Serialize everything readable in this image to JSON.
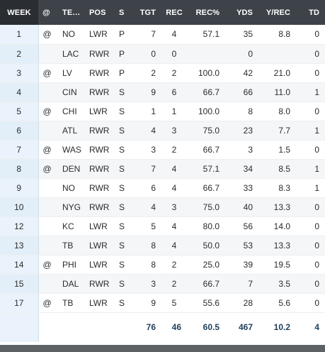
{
  "table": {
    "headers": {
      "week": "WEEK",
      "at": "@",
      "team": "TE…",
      "pos": "POS",
      "s": "S",
      "tgt": "TGT",
      "rec": "REC",
      "rec_pct": "REC%",
      "yds": "YDS",
      "y_rec": "Y/REC",
      "td": "TD"
    },
    "rows": [
      {
        "week": "1",
        "at": "@",
        "team": "NO",
        "pos": "LWR",
        "s": "P",
        "tgt": "7",
        "rec": "4",
        "rec_pct": "57.1",
        "yds": "35",
        "y_rec": "8.8",
        "td": "0"
      },
      {
        "week": "2",
        "at": "",
        "team": "LAC",
        "pos": "RWR",
        "s": "P",
        "tgt": "0",
        "rec": "0",
        "rec_pct": "",
        "yds": "0",
        "y_rec": "",
        "td": "0"
      },
      {
        "week": "3",
        "at": "@",
        "team": "LV",
        "pos": "RWR",
        "s": "P",
        "tgt": "2",
        "rec": "2",
        "rec_pct": "100.0",
        "yds": "42",
        "y_rec": "21.0",
        "td": "0"
      },
      {
        "week": "4",
        "at": "",
        "team": "CIN",
        "pos": "RWR",
        "s": "S",
        "tgt": "9",
        "rec": "6",
        "rec_pct": "66.7",
        "yds": "66",
        "y_rec": "11.0",
        "td": "1"
      },
      {
        "week": "5",
        "at": "@",
        "team": "CHI",
        "pos": "LWR",
        "s": "S",
        "tgt": "1",
        "rec": "1",
        "rec_pct": "100.0",
        "yds": "8",
        "y_rec": "8.0",
        "td": "0"
      },
      {
        "week": "6",
        "at": "",
        "team": "ATL",
        "pos": "RWR",
        "s": "S",
        "tgt": "4",
        "rec": "3",
        "rec_pct": "75.0",
        "yds": "23",
        "y_rec": "7.7",
        "td": "1"
      },
      {
        "week": "7",
        "at": "@",
        "team": "WAS",
        "pos": "RWR",
        "s": "S",
        "tgt": "3",
        "rec": "2",
        "rec_pct": "66.7",
        "yds": "3",
        "y_rec": "1.5",
        "td": "0"
      },
      {
        "week": "8",
        "at": "@",
        "team": "DEN",
        "pos": "RWR",
        "s": "S",
        "tgt": "7",
        "rec": "4",
        "rec_pct": "57.1",
        "yds": "34",
        "y_rec": "8.5",
        "td": "1"
      },
      {
        "week": "9",
        "at": "",
        "team": "NO",
        "pos": "RWR",
        "s": "S",
        "tgt": "6",
        "rec": "4",
        "rec_pct": "66.7",
        "yds": "33",
        "y_rec": "8.3",
        "td": "1"
      },
      {
        "week": "10",
        "at": "",
        "team": "NYG",
        "pos": "RWR",
        "s": "S",
        "tgt": "4",
        "rec": "3",
        "rec_pct": "75.0",
        "yds": "40",
        "y_rec": "13.3",
        "td": "0"
      },
      {
        "week": "12",
        "at": "",
        "team": "KC",
        "pos": "LWR",
        "s": "S",
        "tgt": "5",
        "rec": "4",
        "rec_pct": "80.0",
        "yds": "56",
        "y_rec": "14.0",
        "td": "0"
      },
      {
        "week": "13",
        "at": "",
        "team": "TB",
        "pos": "LWR",
        "s": "S",
        "tgt": "8",
        "rec": "4",
        "rec_pct": "50.0",
        "yds": "53",
        "y_rec": "13.3",
        "td": "0"
      },
      {
        "week": "14",
        "at": "@",
        "team": "PHI",
        "pos": "LWR",
        "s": "S",
        "tgt": "8",
        "rec": "2",
        "rec_pct": "25.0",
        "yds": "39",
        "y_rec": "19.5",
        "td": "0"
      },
      {
        "week": "15",
        "at": "",
        "team": "DAL",
        "pos": "RWR",
        "s": "S",
        "tgt": "3",
        "rec": "2",
        "rec_pct": "66.7",
        "yds": "7",
        "y_rec": "3.5",
        "td": "0"
      },
      {
        "week": "17",
        "at": "@",
        "team": "TB",
        "pos": "LWR",
        "s": "S",
        "tgt": "9",
        "rec": "5",
        "rec_pct": "55.6",
        "yds": "28",
        "y_rec": "5.6",
        "td": "0"
      }
    ],
    "totals": {
      "tgt": "76",
      "rec": "46",
      "rec_pct": "60.5",
      "yds": "467",
      "y_rec": "10.2",
      "td": "4"
    }
  }
}
